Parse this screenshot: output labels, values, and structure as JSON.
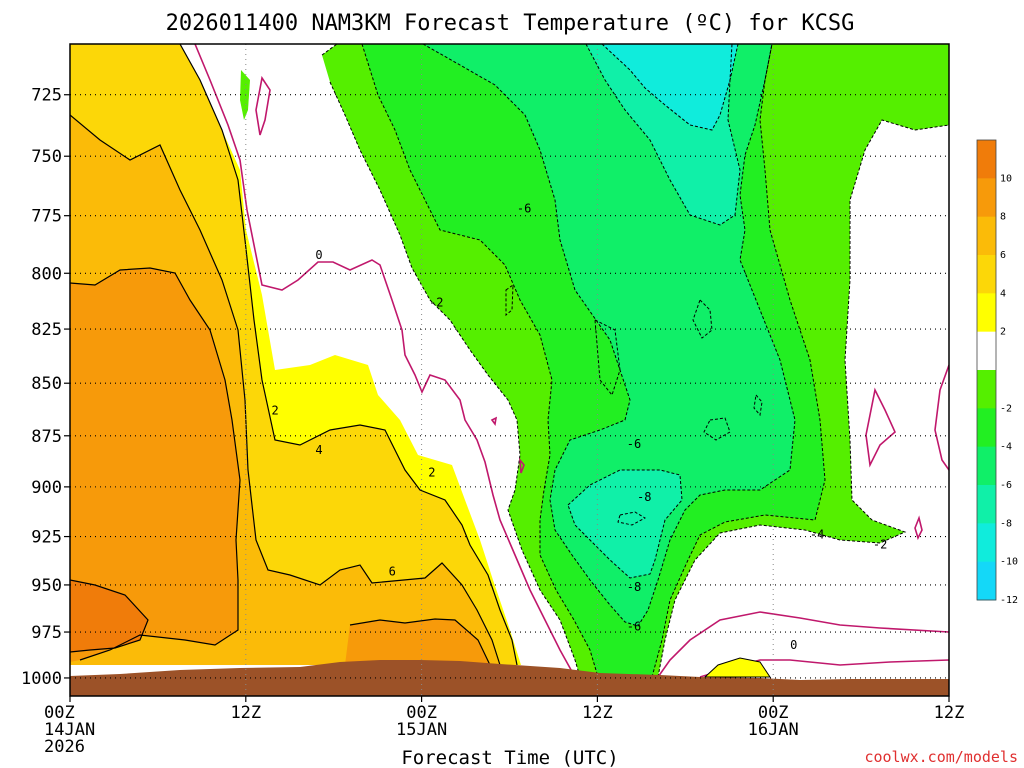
{
  "chart_data": {
    "type": "filled contour cross-section",
    "title": "2026011400 NAM3KM Forecast Temperature (ºC) for KCSG",
    "xlabel": "Forecast Time (UTC)",
    "ylabel": "",
    "y_scale": "log",
    "y_reversed": true,
    "ylim": [
      1010,
      705
    ],
    "y_ticks": [
      725,
      750,
      775,
      800,
      825,
      850,
      875,
      900,
      925,
      950,
      975,
      1000
    ],
    "x_ticks": [
      {
        "hour": 0,
        "lines": [
          "00Z",
          "14JAN",
          "2026"
        ]
      },
      {
        "hour": 12,
        "lines": [
          "12Z"
        ]
      },
      {
        "hour": 24,
        "lines": [
          "00Z",
          "15JAN"
        ]
      },
      {
        "hour": 36,
        "lines": [
          "12Z"
        ]
      },
      {
        "hour": 48,
        "lines": [
          "00Z",
          "16JAN"
        ]
      },
      {
        "hour": 60,
        "lines": [
          "12Z"
        ]
      }
    ],
    "xlim": [
      0,
      60
    ],
    "grid": true,
    "colorbar": {
      "ticks": [
        "10",
        "8",
        "6",
        "4",
        "2",
        "-2",
        "-4",
        "-6",
        "-8",
        "-10",
        "-12"
      ],
      "colors": [
        "#f07c0a",
        "#f79a0a",
        "#fbbb08",
        "#fcd708",
        "#ffff00",
        "#ffffff",
        "#55ef00",
        "#22ef22",
        "#10ef68",
        "#10f0a8",
        "#10ecdc",
        "#14d8f8"
      ],
      "bounds": [
        12,
        10,
        8,
        6,
        4,
        2,
        -2,
        -4,
        -6,
        -8,
        -10,
        -12,
        -14
      ]
    },
    "contour_labels": [
      {
        "text": "0",
        "hour": 17,
        "p": 792
      },
      {
        "text": "-2",
        "hour": 25,
        "p": 813
      },
      {
        "text": "2",
        "hour": 14,
        "p": 863
      },
      {
        "text": "4",
        "hour": 17,
        "p": 882
      },
      {
        "text": "2",
        "hour": 24.7,
        "p": 893
      },
      {
        "text": "6",
        "hour": 22,
        "p": 943
      },
      {
        "text": "-6",
        "hour": 31,
        "p": 772
      },
      {
        "text": "-6",
        "hour": 38.5,
        "p": 879
      },
      {
        "text": "-8",
        "hour": 39.2,
        "p": 905
      },
      {
        "text": "-8",
        "hour": 38.5,
        "p": 951
      },
      {
        "text": "-6",
        "hour": 38.5,
        "p": 972
      },
      {
        "text": "-4",
        "hour": 51,
        "p": 924
      },
      {
        "text": "-2",
        "hour": 55.3,
        "p": 929
      },
      {
        "text": "0",
        "hour": 49.4,
        "p": 982
      }
    ],
    "terrain_color": "#9c5228"
  },
  "source_label": "coolwx.com/models"
}
